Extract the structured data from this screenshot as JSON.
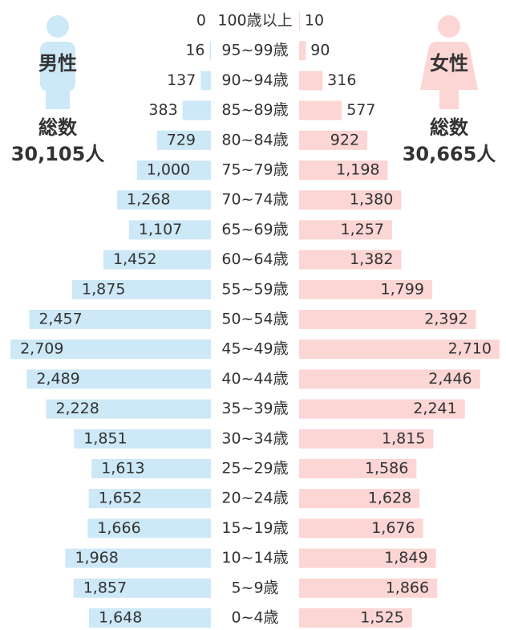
{
  "chart_data": {
    "type": "pyramid",
    "categories": [
      "100歳以上",
      "95~99歳",
      "90~94歳",
      "85~89歳",
      "80~84歳",
      "75~79歳",
      "70~74歳",
      "65~69歳",
      "60~64歳",
      "55~59歳",
      "50~54歳",
      "45~49歳",
      "40~44歳",
      "35~39歳",
      "30~34歳",
      "25~29歳",
      "20~24歳",
      "15~19歳",
      "10~14歳",
      "5~9歳",
      "0~4歳"
    ],
    "series": [
      {
        "name": "男性",
        "color": "#cde8f6",
        "values": [
          0,
          16,
          137,
          383,
          729,
          1000,
          1268,
          1107,
          1452,
          1875,
          2457,
          2709,
          2489,
          2228,
          1851,
          1613,
          1652,
          1666,
          1968,
          1857,
          1648
        ],
        "value_labels": [
          "0",
          "16",
          "137",
          "383",
          "729",
          "1,000",
          "1,268",
          "1,107",
          "1,452",
          "1,875",
          "2,457",
          "2,709",
          "2,489",
          "2,228",
          "1,851",
          "1,613",
          "1,652",
          "1,666",
          "1,968",
          "1,857",
          "1,648"
        ],
        "total_label": "総数",
        "total": "30,105人"
      },
      {
        "name": "女性",
        "color": "#fbd6d4",
        "values": [
          10,
          90,
          316,
          577,
          922,
          1198,
          1380,
          1257,
          1382,
          1799,
          2392,
          2710,
          2446,
          2241,
          1815,
          1586,
          1628,
          1676,
          1849,
          1866,
          1525
        ],
        "value_labels": [
          "10",
          "90",
          "316",
          "577",
          "922",
          "1,198",
          "1,380",
          "1,257",
          "1,382",
          "1,799",
          "2,392",
          "2,710",
          "2,446",
          "2,241",
          "1,815",
          "1,586",
          "1,628",
          "1,676",
          "1,849",
          "1,866",
          "1,525"
        ],
        "total_label": "総数",
        "total": "30,665人"
      }
    ]
  }
}
